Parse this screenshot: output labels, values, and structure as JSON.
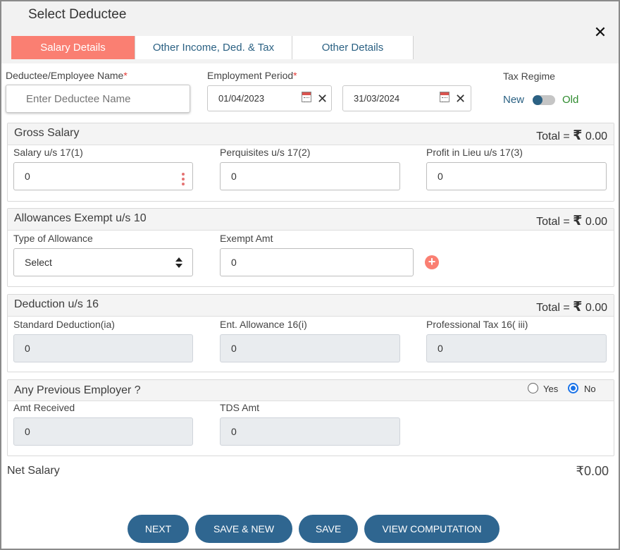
{
  "dialog": {
    "title": "Select Deductee",
    "close_symbol": "✕"
  },
  "tabs": [
    {
      "label": "Salary Details",
      "active": true
    },
    {
      "label": "Other Income, Ded. & Tax",
      "active": false
    },
    {
      "label": "Other Details",
      "active": false
    }
  ],
  "deductee": {
    "label": "Deductee/Employee Name",
    "required_mark": "*",
    "placeholder": "Enter Deductee Name",
    "value": ""
  },
  "employment_period": {
    "label": "Employment Period",
    "required_mark": "*",
    "from": "01/04/2023",
    "to": "31/03/2024",
    "clear_symbol": "✕"
  },
  "tax_regime": {
    "label": "Tax Regime",
    "option_new": "New",
    "option_old": "Old",
    "selected": "New"
  },
  "gross_salary": {
    "title": "Gross Salary",
    "total_label": "Total =",
    "currency": "₹",
    "total": "0.00",
    "fields": [
      {
        "label": "Salary u/s 17(1)",
        "value": "0"
      },
      {
        "label": "Perquisites u/s 17(2)",
        "value": "0"
      },
      {
        "label": "Profit in Lieu u/s 17(3)",
        "value": "0"
      }
    ]
  },
  "allowances": {
    "title": "Allowances Exempt u/s 10",
    "total_label": "Total =",
    "currency": "₹",
    "total": "0.00",
    "type_label": "Type of Allowance",
    "type_value": "Select",
    "exempt_label": "Exempt Amt",
    "exempt_value": "0",
    "add_symbol": "+"
  },
  "deduction16": {
    "title": "Deduction u/s 16",
    "total_label": "Total =",
    "currency": "₹",
    "total": "0.00",
    "fields": [
      {
        "label": "Standard Deduction(ia)",
        "value": "0"
      },
      {
        "label": "Ent. Allowance 16(i)",
        "value": "0"
      },
      {
        "label": "Professional Tax 16( iii)",
        "value": "0"
      }
    ]
  },
  "previous_employer": {
    "title": "Any Previous Employer ?",
    "yes_label": "Yes",
    "no_label": "No",
    "selected": "No",
    "fields": [
      {
        "label": "Amt Received",
        "value": "0"
      },
      {
        "label": "TDS Amt",
        "value": "0"
      }
    ]
  },
  "net_salary": {
    "label": "Net Salary",
    "value": "₹0.00"
  },
  "buttons": {
    "next": "NEXT",
    "save_new": "SAVE & NEW",
    "save": "SAVE",
    "view_computation": "VIEW COMPUTATION"
  },
  "colors": {
    "active_tab": "#fa7f72",
    "tab_text": "#2b6183",
    "primary_button": "#2f6690",
    "old_label": "#2e8b2e",
    "radio_checked": "#1a73e8"
  }
}
